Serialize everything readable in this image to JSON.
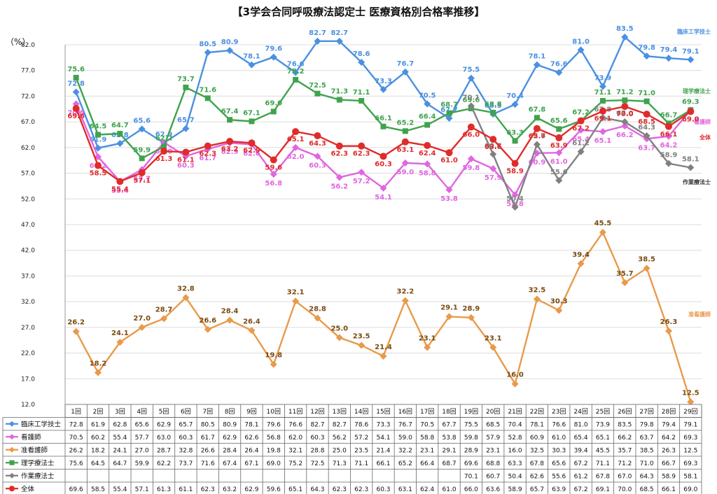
{
  "chart_data": {
    "type": "line",
    "title": "【3学会合同呼吸療法認定士 医療資格別合格率推移】",
    "ylabel": "（%）",
    "ylim": [
      12.0,
      82.0
    ],
    "yticks": [
      "12.0",
      "17.0",
      "22.0",
      "27.0",
      "32.0",
      "37.0",
      "42.0",
      "47.0",
      "52.0",
      "57.0",
      "62.0",
      "67.0",
      "72.0",
      "77.0",
      "82.0"
    ],
    "categories": [
      "1回",
      "2回",
      "3回",
      "4回",
      "5回",
      "6回",
      "7回",
      "8回",
      "9回",
      "10回",
      "11回",
      "12回",
      "13回",
      "14回",
      "15回",
      "16回",
      "17回",
      "18回",
      "19回",
      "20回",
      "21回",
      "22回",
      "23回",
      "24回",
      "25回",
      "26回",
      "27回",
      "28回",
      "29回"
    ],
    "series": [
      {
        "name": "臨床工学技士",
        "end_label": "臨床工学技士",
        "color": "#4a90e2",
        "marker": "diamond",
        "values": [
          72.8,
          61.9,
          62.8,
          65.6,
          62.9,
          65.7,
          80.5,
          80.9,
          78.1,
          79.6,
          76.6,
          82.7,
          82.7,
          78.6,
          73.3,
          76.7,
          70.5,
          67.7,
          75.5,
          68.5,
          70.4,
          78.1,
          76.6,
          81.0,
          73.9,
          83.5,
          79.8,
          79.4,
          79.1
        ]
      },
      {
        "name": "看護師",
        "end_label": "看護師",
        "color": "#e066e0",
        "marker": "diamond",
        "values": [
          70.5,
          60.2,
          55.4,
          57.7,
          63.0,
          60.3,
          61.7,
          62.9,
          62.6,
          56.8,
          62.0,
          60.3,
          56.2,
          57.2,
          54.1,
          59.0,
          58.8,
          53.8,
          59.8,
          57.9,
          52.8,
          60.9,
          61.0,
          65.4,
          65.1,
          66.2,
          63.7,
          64.2,
          69.3
        ]
      },
      {
        "name": "准看護師",
        "end_label": "准看護師",
        "color": "#e89a4a",
        "marker": "diamond",
        "values": [
          26.2,
          18.2,
          24.1,
          27.0,
          28.7,
          32.8,
          26.6,
          28.4,
          26.4,
          19.8,
          32.1,
          28.8,
          25.0,
          23.5,
          21.4,
          32.2,
          23.1,
          29.1,
          28.9,
          23.1,
          16.0,
          32.5,
          30.3,
          39.4,
          45.5,
          35.7,
          38.5,
          26.3,
          12.5
        ]
      },
      {
        "name": "理学療法士",
        "end_label": "理学療法士",
        "color": "#3fa34d",
        "marker": "square",
        "values": [
          75.6,
          64.5,
          64.7,
          59.9,
          62.2,
          73.7,
          71.6,
          67.4,
          67.1,
          69.0,
          75.2,
          72.5,
          71.3,
          71.1,
          66.1,
          65.2,
          66.4,
          68.7,
          69.6,
          68.8,
          63.3,
          67.8,
          65.6,
          67.2,
          71.1,
          71.2,
          71.0,
          66.7,
          69.3
        ]
      },
      {
        "name": "作業療法士",
        "end_label": "作業療法士",
        "color": "#808080",
        "marker": "diamond",
        "values": [
          null,
          null,
          null,
          null,
          null,
          null,
          null,
          null,
          null,
          null,
          null,
          null,
          null,
          null,
          null,
          null,
          null,
          null,
          70.1,
          60.7,
          50.4,
          62.6,
          55.6,
          61.2,
          67.8,
          67.0,
          64.3,
          58.9,
          58.1
        ]
      },
      {
        "name": "全体",
        "end_label": "全体",
        "color": "#e02b2b",
        "marker": "circle",
        "values": [
          69.6,
          58.5,
          55.4,
          57.1,
          61.3,
          61.1,
          62.3,
          63.2,
          62.9,
          59.6,
          65.1,
          64.3,
          62.3,
          62.3,
          60.3,
          63.1,
          62.4,
          61.0,
          66.0,
          63.6,
          58.9,
          65.7,
          63.9,
          67.2,
          69.1,
          70.0,
          68.5,
          66.1,
          69.0
        ]
      }
    ],
    "table": {
      "rows": [
        [
          "72.8",
          "61.9",
          "62.8",
          "65.6",
          "62.9",
          "65.7",
          "80.5",
          "80.9",
          "78.1",
          "79.6",
          "76.6",
          "82.7",
          "82.7",
          "78.6",
          "73.3",
          "76.7",
          "70.5",
          "67.7",
          "75.5",
          "68.5",
          "70.4",
          "78.1",
          "76.6",
          "81.0",
          "73.9",
          "83.5",
          "79.8",
          "79.4",
          "79.1"
        ],
        [
          "70.5",
          "60.2",
          "55.4",
          "57.7",
          "63.0",
          "60.3",
          "61.7",
          "62.9",
          "62.6",
          "56.8",
          "62.0",
          "60.3",
          "56.2",
          "57.2",
          "54.1",
          "59.0",
          "58.8",
          "53.8",
          "59.8",
          "57.9",
          "52.8",
          "60.9",
          "61.0",
          "65.4",
          "65.1",
          "66.2",
          "63.7",
          "64.2",
          "69.3"
        ],
        [
          "26.2",
          "18.2",
          "24.1",
          "27.0",
          "28.7",
          "32.8",
          "26.6",
          "28.4",
          "26.4",
          "19.8",
          "32.1",
          "28.8",
          "25.0",
          "23.5",
          "21.4",
          "32.2",
          "23.1",
          "29.1",
          "28.9",
          "23.1",
          "16.0",
          "32.5",
          "30.3",
          "39.4",
          "45.5",
          "35.7",
          "38.5",
          "26.3",
          "12.5"
        ],
        [
          "75.6",
          "64.5",
          "64.7",
          "59.9",
          "62.2",
          "73.7",
          "71.6",
          "67.4",
          "67.1",
          "69.0",
          "75.2",
          "72.5",
          "71.3",
          "71.1",
          "66.1",
          "65.2",
          "66.4",
          "68.7",
          "69.6",
          "68.8",
          "63.3",
          "67.8",
          "65.6",
          "67.2",
          "71.1",
          "71.2",
          "71.0",
          "66.7",
          "69.3"
        ],
        [
          "",
          "",
          "",
          "",
          "",
          "",
          "",
          "",
          "",
          "",
          "",
          "",
          "",
          "",
          "",
          "",
          "",
          "",
          "70.1",
          "60.7",
          "50.4",
          "62.6",
          "55.6",
          "61.2",
          "67.8",
          "67.0",
          "64.3",
          "58.9",
          "58.1"
        ],
        [
          "69.6",
          "58.5",
          "55.4",
          "57.1",
          "61.3",
          "61.1",
          "62.3",
          "63.2",
          "62.9",
          "59.6",
          "65.1",
          "64.3",
          "62.3",
          "62.3",
          "60.3",
          "63.1",
          "62.4",
          "61.0",
          "66.0",
          "63.6",
          "58.9",
          "65.7",
          "63.9",
          "67.2",
          "69.1",
          "70.0",
          "68.5",
          "66.1",
          "69.0"
        ]
      ]
    }
  }
}
